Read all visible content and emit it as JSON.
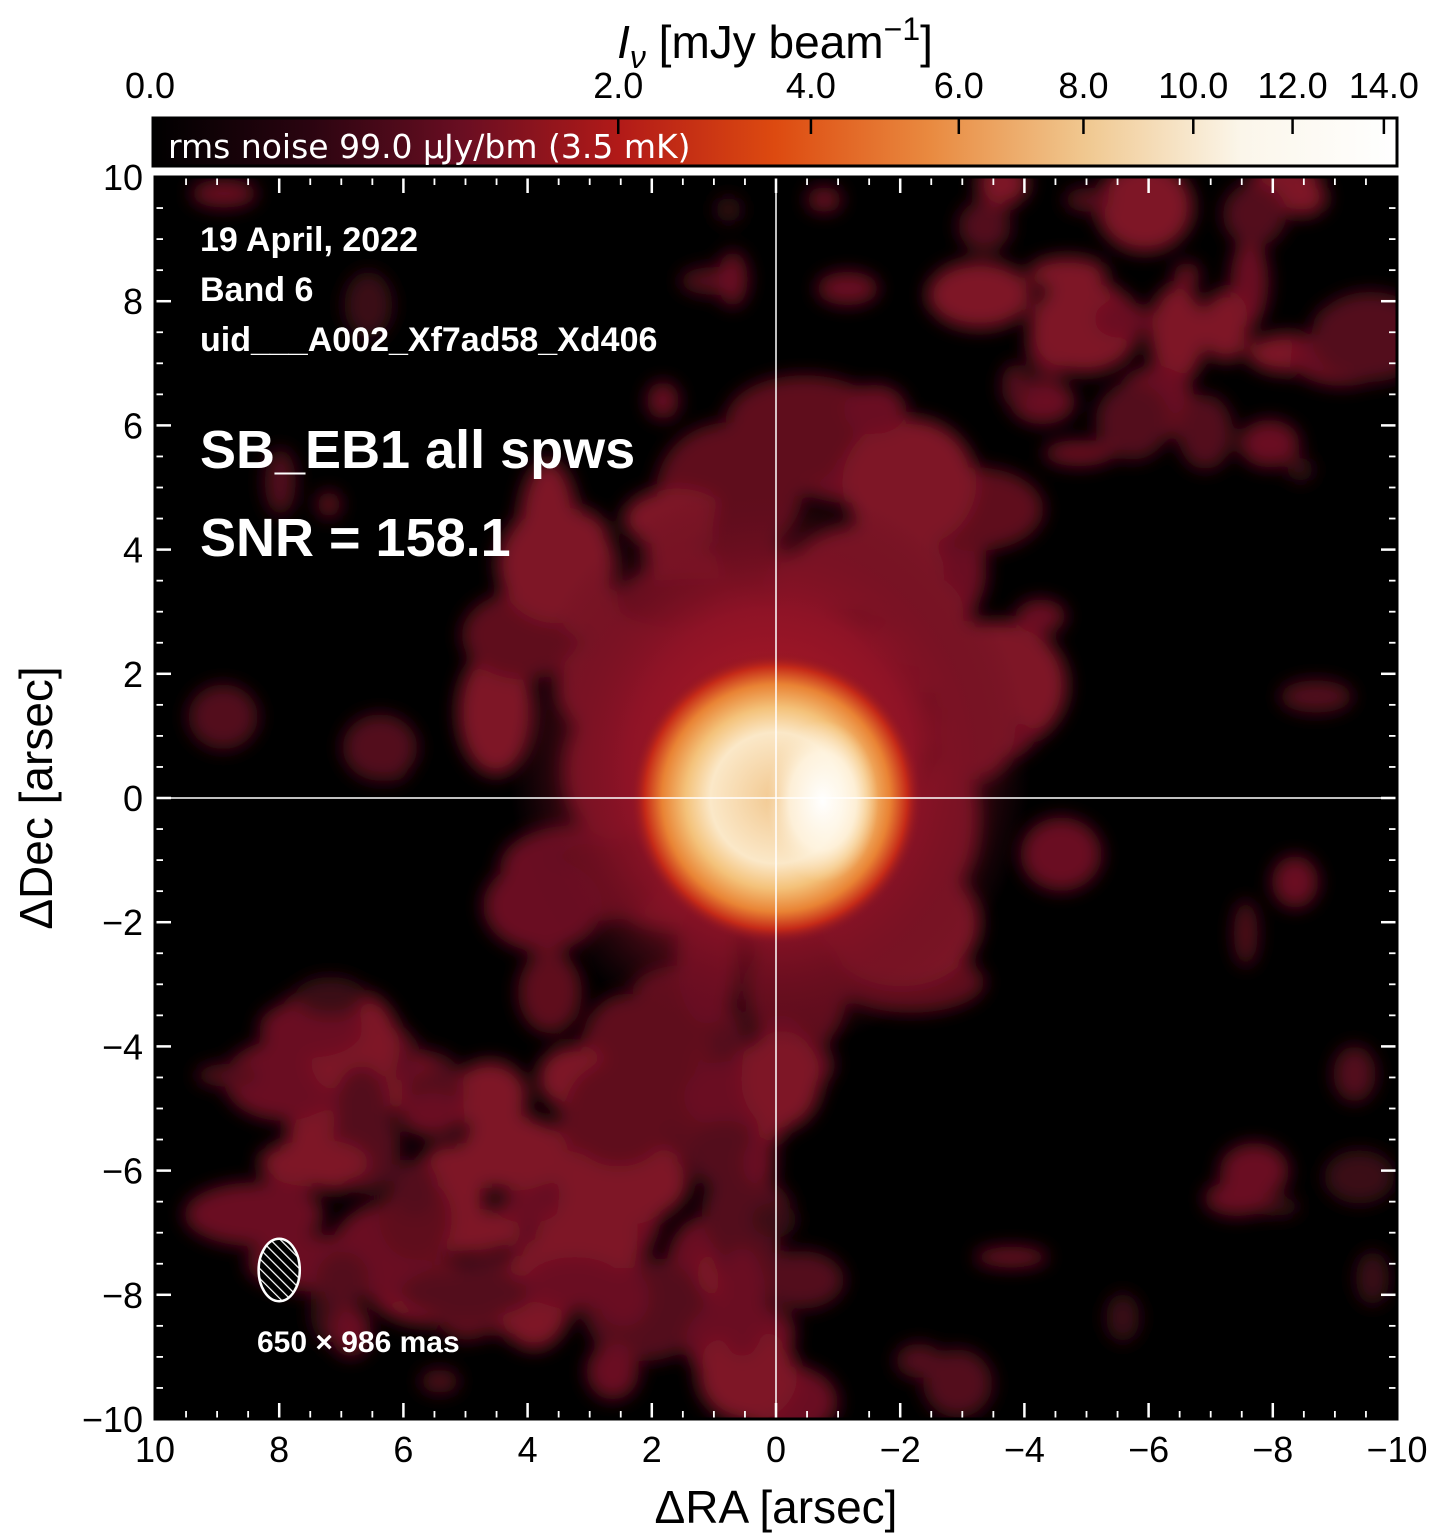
{
  "chart_data": {
    "type": "heatmap",
    "colorbar": {
      "title_main": "I",
      "title_sub": "ν",
      "title_unit": " [mJy beam",
      "title_sup": "−1",
      "title_close": "]",
      "tick_labels": [
        {
          "value": 0.0,
          "label": "0.0"
        },
        {
          "value": 2.0,
          "label": "2.0"
        },
        {
          "value": 4.0,
          "label": "4.0"
        },
        {
          "value": 6.0,
          "label": "6.0"
        },
        {
          "value": 8.0,
          "label": "8.0"
        },
        {
          "value": 10.0,
          "label": "10.0"
        },
        {
          "value": 12.0,
          "label": "12.0"
        },
        {
          "value": 14.0,
          "label": "14.0"
        }
      ],
      "range": [
        0.0,
        14.3
      ],
      "colormap": [
        "#000000",
        "#2a0410",
        "#6a0e22",
        "#b21a18",
        "#dd4a10",
        "#e98a40",
        "#f0c890",
        "#fbf6ea",
        "#ffffff"
      ],
      "note": "rms noise 99.0 μJy/bm (3.5 mK)"
    },
    "xlabel": "ΔRA [arsec]",
    "ylabel": "ΔDec [arsec]",
    "xlim": [
      10,
      -10
    ],
    "ylim": [
      -10,
      10
    ],
    "x_ticks": [
      {
        "value": 10,
        "label": "10"
      },
      {
        "value": 8,
        "label": "8"
      },
      {
        "value": 6,
        "label": "6"
      },
      {
        "value": 4,
        "label": "4"
      },
      {
        "value": 2,
        "label": "2"
      },
      {
        "value": 0,
        "label": "0"
      },
      {
        "value": -2,
        "label": "−2"
      },
      {
        "value": -4,
        "label": "−4"
      },
      {
        "value": -6,
        "label": "−6"
      },
      {
        "value": -8,
        "label": "−8"
      },
      {
        "value": -10,
        "label": "−10"
      }
    ],
    "y_ticks": [
      {
        "value": 10,
        "label": "10"
      },
      {
        "value": 8,
        "label": "8"
      },
      {
        "value": 6,
        "label": "6"
      },
      {
        "value": 4,
        "label": "4"
      },
      {
        "value": 2,
        "label": "2"
      },
      {
        "value": 0,
        "label": "0"
      },
      {
        "value": -2,
        "label": "−2"
      },
      {
        "value": -4,
        "label": "−4"
      },
      {
        "value": -6,
        "label": "−6"
      },
      {
        "value": -8,
        "label": "−8"
      },
      {
        "value": -10,
        "label": "−10"
      }
    ],
    "crosshair": {
      "x": 0,
      "y": 0
    },
    "source": {
      "x": -0.3,
      "y": 0.0,
      "peak": 14.3,
      "ring_radius": 0.9
    },
    "annotations": {
      "date": "19 April, 2022",
      "band": "Band 6",
      "uid": "uid___A002_Xf7ad58_Xd406",
      "label": "SB_EB1 all spws",
      "snr": "SNR = 158.1",
      "beam": "650 × 986 mas"
    },
    "beam": {
      "x": 8.0,
      "y": -7.6,
      "major": 0.986,
      "minor": 0.65
    }
  }
}
